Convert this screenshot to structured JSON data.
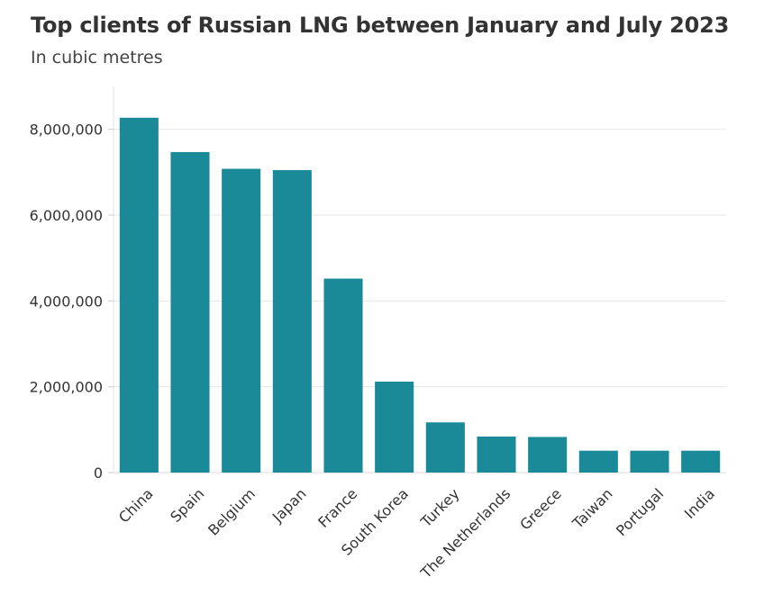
{
  "chart_data": {
    "type": "bar",
    "title": "Top clients of Russian LNG between January and July 2023",
    "subtitle": "In cubic metres",
    "xlabel": "",
    "ylabel": "",
    "categories": [
      "China",
      "Spain",
      "Belgium",
      "Japan",
      "France",
      "South Korea",
      "Turkey",
      "The Netherlands",
      "Greece",
      "Taiwan",
      "Portugal",
      "India"
    ],
    "values": [
      8270000,
      7470000,
      7080000,
      7050000,
      4520000,
      2120000,
      1170000,
      840000,
      830000,
      510000,
      510000,
      510000
    ],
    "ylim": [
      0,
      9000000
    ],
    "yticks": [
      0,
      2000000,
      4000000,
      6000000,
      8000000
    ],
    "ytick_labels": [
      "0",
      "2,000,000",
      "4,000,000",
      "6,000,000",
      "8,000,000"
    ],
    "grid": true,
    "bar_color": "#1a8a99"
  }
}
